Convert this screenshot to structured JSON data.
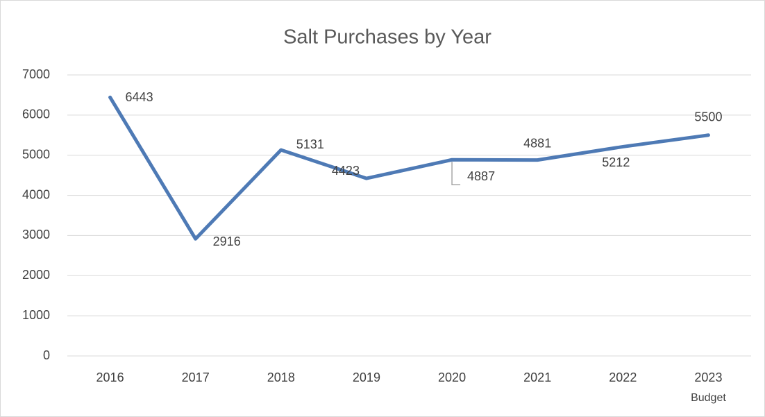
{
  "chart_data": {
    "type": "line",
    "title": "Salt Purchases by Year",
    "categories": [
      "2016",
      "2017",
      "2018",
      "2019",
      "2020",
      "2021",
      "2022",
      "2023\nBudget"
    ],
    "series": [
      {
        "name": "Salt Purchases",
        "color": "#4e7ab5",
        "values": [
          6443,
          2916,
          5131,
          4423,
          4887,
          4881,
          5212,
          5500
        ]
      }
    ],
    "ylim": [
      0,
      7000
    ],
    "yticks": [
      0,
      1000,
      2000,
      3000,
      4000,
      5000,
      6000,
      7000
    ],
    "grid": true
  }
}
